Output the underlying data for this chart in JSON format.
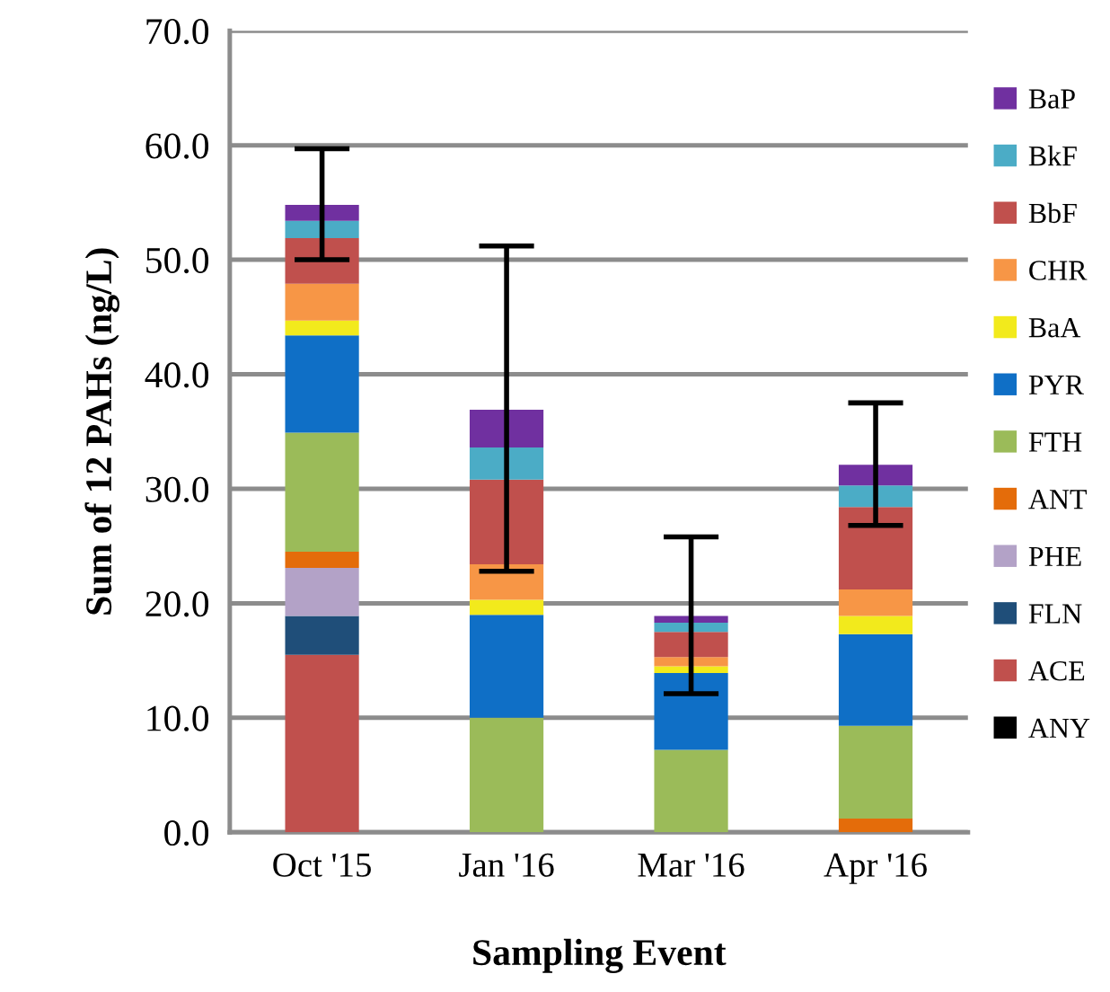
{
  "chart_data": {
    "type": "bar",
    "stacked": true,
    "xlabel": "Sampling Event",
    "ylabel": "Sum of 12 PAHs (ng/L)",
    "categories": [
      "Oct '15",
      "Jan '16",
      "Mar '16",
      "Apr '16"
    ],
    "series": [
      {
        "name": "ANY",
        "color": "#000000",
        "values": [
          0,
          0,
          0,
          0
        ]
      },
      {
        "name": "ACE",
        "color": "#c0504d",
        "values": [
          15.5,
          0,
          0,
          0
        ]
      },
      {
        "name": "FLN",
        "color": "#1f4e79",
        "values": [
          3.4,
          0,
          0,
          0
        ]
      },
      {
        "name": "PHE",
        "color": "#b3a2c7",
        "values": [
          4.2,
          0,
          0,
          0
        ]
      },
      {
        "name": "ANT",
        "color": "#e46c0a",
        "values": [
          1.4,
          0,
          0,
          1.2
        ]
      },
      {
        "name": "FTH",
        "color": "#9bbb59",
        "values": [
          10.4,
          10.0,
          7.2,
          8.1
        ]
      },
      {
        "name": "PYR",
        "color": "#0f6fc6",
        "values": [
          8.5,
          9.0,
          6.7,
          8.0
        ]
      },
      {
        "name": "BaA",
        "color": "#f2ea1c",
        "values": [
          1.3,
          1.3,
          0.6,
          1.6
        ]
      },
      {
        "name": "CHR",
        "color": "#f79646",
        "values": [
          3.2,
          3.1,
          0.8,
          2.3
        ]
      },
      {
        "name": "BbF",
        "color": "#c0504d",
        "values": [
          4.0,
          7.4,
          2.2,
          7.2
        ]
      },
      {
        "name": "BkF",
        "color": "#4bacc6",
        "values": [
          1.5,
          2.8,
          0.8,
          1.9
        ]
      },
      {
        "name": "BaP",
        "color": "#7030a0",
        "values": [
          1.4,
          3.3,
          0.6,
          1.8
        ],
        "errors": [
          [
            50.0,
            59.7
          ],
          [
            22.8,
            51.2
          ],
          [
            12.1,
            25.8
          ],
          [
            26.8,
            37.5
          ]
        ]
      }
    ],
    "ylim": [
      0,
      70
    ],
    "yticks": [
      {
        "value": 0,
        "label": "0.0"
      },
      {
        "value": 10,
        "label": "10.0"
      },
      {
        "value": 20,
        "label": "20.0"
      },
      {
        "value": 30,
        "label": "30.0"
      },
      {
        "value": 40,
        "label": "40.0"
      },
      {
        "value": 50,
        "label": "50.0"
      },
      {
        "value": 60,
        "label": "60.0"
      },
      {
        "value": 70,
        "label": "70.0"
      }
    ],
    "grid": "y",
    "legend": "right"
  }
}
